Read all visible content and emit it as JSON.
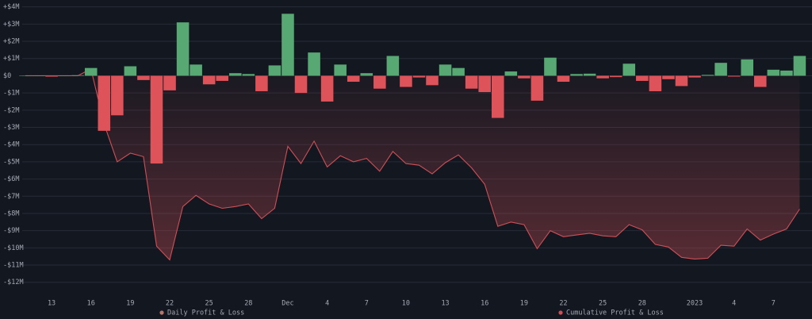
{
  "chart_data": {
    "type": "combo",
    "categories": [
      null,
      null,
      "13",
      null,
      null,
      "16",
      null,
      null,
      "19",
      null,
      null,
      "22",
      null,
      null,
      "25",
      null,
      null,
      "28",
      null,
      null,
      "Dec",
      null,
      null,
      "4",
      null,
      null,
      "7",
      null,
      null,
      "10",
      null,
      null,
      "13",
      null,
      null,
      "16",
      null,
      null,
      "19",
      null,
      null,
      "22",
      null,
      null,
      "25",
      null,
      null,
      "28",
      null,
      null,
      null,
      "2023",
      null,
      null,
      "4",
      null,
      null,
      "7",
      null,
      null
    ],
    "series": [
      {
        "name": "Daily Profit & Loss",
        "type": "bar",
        "color": "#b8766a",
        "positive_color": "#57a872",
        "negative_color": "#de5259",
        "values": [
          0.02,
          0.01,
          -0.05,
          0.02,
          0.03,
          0.45,
          -3.2,
          -2.3,
          0.55,
          -0.25,
          -5.1,
          -0.85,
          3.1,
          0.65,
          -0.5,
          -0.3,
          0.15,
          0.1,
          -0.9,
          0.6,
          3.6,
          -1.0,
          1.35,
          -1.5,
          0.65,
          -0.35,
          0.15,
          -0.75,
          1.15,
          -0.65,
          -0.1,
          -0.55,
          0.65,
          0.45,
          -0.75,
          -0.95,
          -2.45,
          0.25,
          -0.15,
          -1.45,
          1.05,
          -0.35,
          0.1,
          0.12,
          -0.15,
          -0.08,
          0.7,
          -0.3,
          -0.9,
          -0.2,
          -0.6,
          -0.1,
          0.05,
          0.75,
          -0.05,
          0.95,
          -0.65,
          0.35,
          0.3,
          1.15
        ]
      },
      {
        "name": "Cumulative Profit & Loss",
        "type": "line",
        "color": "#cf4f57",
        "area": true,
        "values": [
          0,
          0,
          0,
          0,
          0,
          0.4,
          -2.8,
          -5.0,
          -4.5,
          -4.7,
          -9.9,
          -10.7,
          -7.6,
          -6.95,
          -7.45,
          -7.7,
          -7.6,
          -7.45,
          -8.3,
          -7.7,
          -4.1,
          -5.1,
          -3.8,
          -5.3,
          -4.65,
          -5.0,
          -4.8,
          -5.55,
          -4.4,
          -5.1,
          -5.2,
          -5.7,
          -5.05,
          -4.6,
          -5.35,
          -6.3,
          -8.75,
          -8.5,
          -8.65,
          -10.05,
          -9.0,
          -9.35,
          -9.25,
          -9.15,
          -9.3,
          -9.35,
          -8.65,
          -8.95,
          -9.8,
          -9.95,
          -10.55,
          -10.65,
          -10.6,
          -9.85,
          -9.9,
          -8.9,
          -9.55,
          -9.2,
          -8.9,
          -7.75
        ]
      }
    ],
    "ylim": [
      -12.75,
      4.4
    ],
    "yticks": [
      {
        "value": 4,
        "label": "+$4M"
      },
      {
        "value": 3,
        "label": "+$3M"
      },
      {
        "value": 2,
        "label": "+$2M"
      },
      {
        "value": 1,
        "label": "+$1M"
      },
      {
        "value": 0,
        "label": "$0"
      },
      {
        "value": -1,
        "label": "-$1M"
      },
      {
        "value": -2,
        "label": "-$2M"
      },
      {
        "value": -3,
        "label": "-$3M"
      },
      {
        "value": -4,
        "label": "-$4M"
      },
      {
        "value": -5,
        "label": "-$5M"
      },
      {
        "value": -6,
        "label": "-$6M"
      },
      {
        "value": -7,
        "label": "-$7M"
      },
      {
        "value": -8,
        "label": "-$8M"
      },
      {
        "value": -9,
        "label": "-$9M"
      },
      {
        "value": -10,
        "label": "-$10M"
      },
      {
        "value": -11,
        "label": "-$11M"
      },
      {
        "value": -12,
        "label": "-$12M"
      }
    ],
    "grid": true,
    "legend": "bottom"
  }
}
